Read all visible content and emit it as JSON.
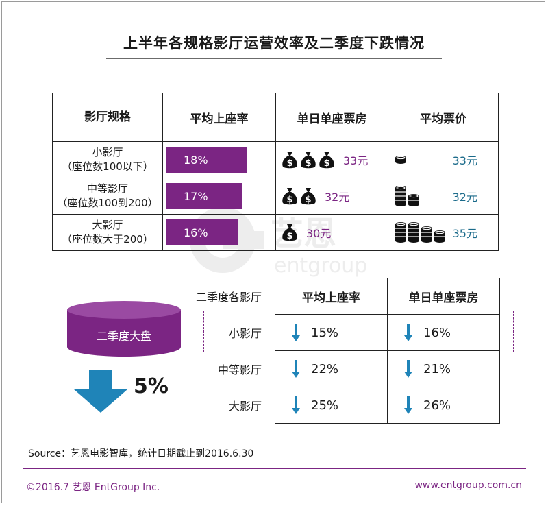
{
  "title": "上半年各规格影厅运营效率及二季度下跌情况",
  "colors": {
    "purple": "#7b2583",
    "teal": "#1a6a8a",
    "arrow_blue": "#1f84b8"
  },
  "chart_data": [
    {
      "type": "table",
      "headers": [
        "影厅规格",
        "平均上座率",
        "单日单座票房",
        "平均票价"
      ],
      "rows": [
        {
          "name_line1": "小影厅",
          "name_line2": "（座位数100以下）",
          "occupancy": "18%",
          "occupancy_value": 18,
          "box_office": "33元",
          "bag_icons": 3,
          "ticket_price": "33元",
          "coin_stacks": [
            1
          ]
        },
        {
          "name_line1": "中等影厅",
          "name_line2": "（座位数100到200）",
          "occupancy": "17%",
          "occupancy_value": 17,
          "box_office": "32元",
          "bag_icons": 2,
          "ticket_price": "32元",
          "coin_stacks": [
            4,
            2
          ]
        },
        {
          "name_line1": "大影厅",
          "name_line2": "（座位数大于200）",
          "occupancy": "16%",
          "occupancy_value": 16,
          "box_office": "30元",
          "bag_icons": 1,
          "ticket_price": "35元",
          "coin_stacks": [
            4,
            4,
            3,
            2
          ]
        }
      ]
    },
    {
      "type": "table",
      "row_header": "二季度各影厅",
      "headers": [
        "平均上座率",
        "单日单座票房"
      ],
      "direction": "下跌",
      "rows": [
        {
          "name": "小影厅",
          "occupancy_drop": "15%",
          "box_office_drop": "16%",
          "highlighted": true
        },
        {
          "name": "中等影厅",
          "occupancy_drop": "22%",
          "box_office_drop": "21%"
        },
        {
          "name": "大影厅",
          "occupancy_drop": "25%",
          "box_office_drop": "26%"
        }
      ]
    }
  ],
  "market": {
    "label": "二季度大盘",
    "change": "5%"
  },
  "watermark": {
    "brand_cn": "艺恩",
    "brand_en": "entgroup"
  },
  "source": "Source：艺恩电影智库，统计日期截止到2016.6.30",
  "footer": {
    "left": "©2016.7 艺恩 EntGroup Inc.",
    "right": "www.entgroup.com.cn"
  }
}
